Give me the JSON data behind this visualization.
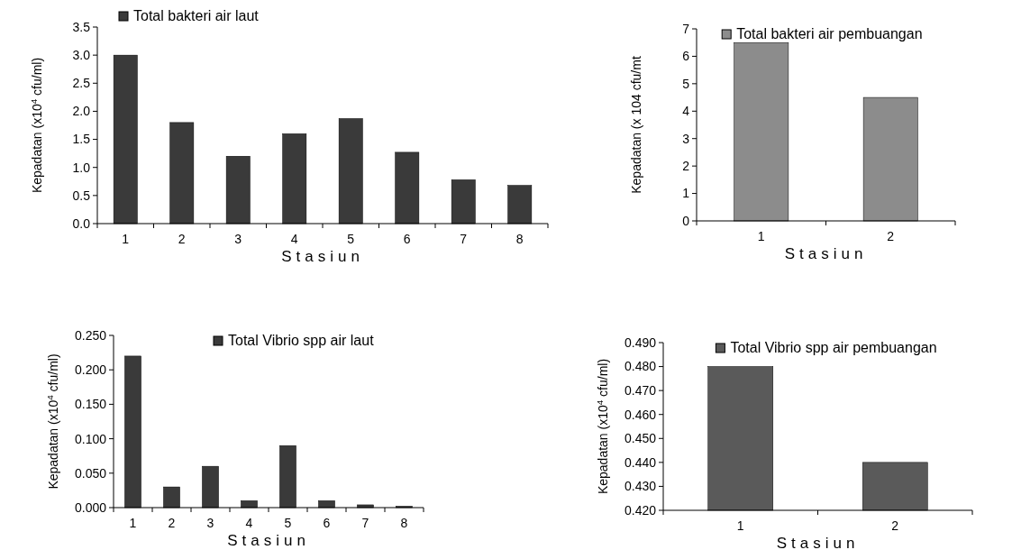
{
  "chart_data": [
    {
      "type": "bar",
      "categories": [
        "1",
        "2",
        "3",
        "4",
        "5",
        "6",
        "7",
        "8"
      ],
      "series": [
        {
          "name": "Total bakteri air laut",
          "color": "#3a3a3a",
          "values": [
            3.0,
            1.8,
            1.2,
            1.6,
            1.87,
            1.27,
            0.78,
            0.68
          ]
        }
      ],
      "xlabel": "Stasiun",
      "ylabel": "Kepadatan (x10$^{4}$ cfu/ml)",
      "ylim": [
        0,
        3.5
      ],
      "yticks": [
        {
          "value": 0,
          "label": "0.0"
        },
        {
          "value": 0.5,
          "label": "0.5"
        },
        {
          "value": 1,
          "label": "1.0"
        },
        {
          "value": 1.5,
          "label": "1.5"
        },
        {
          "value": 2,
          "label": "2.0"
        },
        {
          "value": 2.5,
          "label": "2.5"
        },
        {
          "value": 3,
          "label": "3.0"
        },
        {
          "value": 3.5,
          "label": "3.5"
        }
      ],
      "legend": "top"
    },
    {
      "type": "bar",
      "categories": [
        "1",
        "2"
      ],
      "series": [
        {
          "name": "Total bakteri air pembuangan",
          "color": "#8c8c8c",
          "values": [
            6.5,
            4.5
          ]
        }
      ],
      "xlabel": "Stasiun",
      "ylabel": "Kepadatan (x 104 cfu/mt",
      "ylim": [
        0,
        7
      ],
      "yticks": [
        0,
        1,
        2,
        3,
        4,
        5,
        6,
        7
      ],
      "legend": "top right"
    },
    {
      "type": "bar",
      "categories": [
        "1",
        "2",
        "3",
        "4",
        "5",
        "6",
        "7",
        "8"
      ],
      "series": [
        {
          "name": "Total Vibrio spp air laut",
          "color": "#3a3a3a",
          "values": [
            0.22,
            0.03,
            0.06,
            0.01,
            0.09,
            0.01,
            0.004,
            0.002
          ]
        }
      ],
      "xlabel": "Stasiun",
      "ylabel": "Kepadatan (x10$^{4}$ cfu/ml)",
      "ylim": [
        0,
        0.25
      ],
      "yticks": [
        {
          "value": 0,
          "label": "0.000"
        },
        {
          "value": 0.05,
          "label": "0.050"
        },
        {
          "value": 0.1,
          "label": "0.100"
        },
        {
          "value": 0.15,
          "label": "0.150"
        },
        {
          "value": 0.2,
          "label": "0.200"
        },
        {
          "value": 0.25,
          "label": "0.250"
        }
      ],
      "legend": "top right"
    },
    {
      "type": "bar",
      "categories": [
        "1",
        "2"
      ],
      "series": [
        {
          "name": "Total Vibrio spp air pembuangan",
          "color": "#5a5a5a",
          "values": [
            0.48,
            0.44
          ]
        }
      ],
      "xlabel": "Stasiun",
      "ylabel": "Kepadatan (x10$^{4}$ cfu/ml)",
      "ylim": [
        0.42,
        0.49
      ],
      "yticks": [
        {
          "value": 0.42,
          "label": "0.420"
        },
        {
          "value": 0.43,
          "label": "0.430"
        },
        {
          "value": 0.44,
          "label": "0.440"
        },
        {
          "value": 0.45,
          "label": "0.450"
        },
        {
          "value": 0.46,
          "label": "0.460"
        },
        {
          "value": 0.47,
          "label": "0.470"
        },
        {
          "value": 0.48,
          "label": "0.480"
        },
        {
          "value": 0.49,
          "label": "0.490"
        }
      ],
      "legend": "top right"
    }
  ]
}
